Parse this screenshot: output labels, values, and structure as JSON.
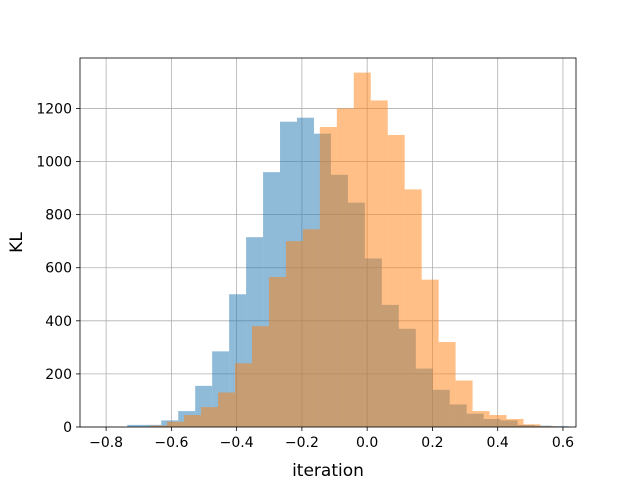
{
  "chart_data": {
    "type": "histogram",
    "title": "",
    "xlabel": "iteration",
    "ylabel": "KL",
    "xlim": [
      -0.88,
      0.64
    ],
    "ylim": [
      0,
      1390
    ],
    "grid": true,
    "legend": "none",
    "xticks": [
      -0.8,
      -0.6,
      -0.4,
      -0.2,
      0.0,
      0.2,
      0.4,
      0.6
    ],
    "xtick_labels": [
      "−0.8",
      "−0.6",
      "−0.4",
      "−0.2",
      "0.0",
      "0.2",
      "0.4",
      "0.6"
    ],
    "yticks": [
      0,
      200,
      400,
      600,
      800,
      1000,
      1200
    ],
    "ytick_labels": [
      "0",
      "200",
      "400",
      "600",
      "800",
      "1000",
      "1200"
    ],
    "series": [
      {
        "color": "#1f77b4",
        "opacity": 0.5,
        "bins": [
          {
            "x0": -0.735,
            "x1": -0.683,
            "count": 8
          },
          {
            "x0": -0.683,
            "x1": -0.631,
            "count": 8
          },
          {
            "x0": -0.631,
            "x1": -0.579,
            "count": 25
          },
          {
            "x0": -0.579,
            "x1": -0.527,
            "count": 60
          },
          {
            "x0": -0.527,
            "x1": -0.475,
            "count": 155
          },
          {
            "x0": -0.475,
            "x1": -0.423,
            "count": 285
          },
          {
            "x0": -0.423,
            "x1": -0.371,
            "count": 500
          },
          {
            "x0": -0.371,
            "x1": -0.319,
            "count": 715
          },
          {
            "x0": -0.319,
            "x1": -0.267,
            "count": 960
          },
          {
            "x0": -0.267,
            "x1": -0.215,
            "count": 1150
          },
          {
            "x0": -0.215,
            "x1": -0.163,
            "count": 1165
          },
          {
            "x0": -0.163,
            "x1": -0.111,
            "count": 1105
          },
          {
            "x0": -0.111,
            "x1": -0.059,
            "count": 950
          },
          {
            "x0": -0.059,
            "x1": -0.007,
            "count": 845
          },
          {
            "x0": -0.007,
            "x1": 0.045,
            "count": 635
          },
          {
            "x0": 0.045,
            "x1": 0.097,
            "count": 460
          },
          {
            "x0": 0.097,
            "x1": 0.149,
            "count": 370
          },
          {
            "x0": 0.149,
            "x1": 0.201,
            "count": 220
          },
          {
            "x0": 0.201,
            "x1": 0.253,
            "count": 140
          },
          {
            "x0": 0.253,
            "x1": 0.305,
            "count": 85
          },
          {
            "x0": 0.305,
            "x1": 0.357,
            "count": 50
          },
          {
            "x0": 0.357,
            "x1": 0.409,
            "count": 30
          },
          {
            "x0": 0.409,
            "x1": 0.461,
            "count": 25
          },
          {
            "x0": 0.461,
            "x1": 0.513,
            "count": 8
          },
          {
            "x0": 0.513,
            "x1": 0.565,
            "count": 5
          },
          {
            "x0": 0.565,
            "x1": 0.617,
            "count": 3
          }
        ]
      },
      {
        "color": "#ff7f0e",
        "opacity": 0.5,
        "bins": [
          {
            "x0": -0.665,
            "x1": -0.613,
            "count": 5
          },
          {
            "x0": -0.613,
            "x1": -0.561,
            "count": 20
          },
          {
            "x0": -0.561,
            "x1": -0.509,
            "count": 45
          },
          {
            "x0": -0.509,
            "x1": -0.457,
            "count": 75
          },
          {
            "x0": -0.457,
            "x1": -0.405,
            "count": 130
          },
          {
            "x0": -0.405,
            "x1": -0.353,
            "count": 240
          },
          {
            "x0": -0.353,
            "x1": -0.301,
            "count": 380
          },
          {
            "x0": -0.301,
            "x1": -0.249,
            "count": 565
          },
          {
            "x0": -0.249,
            "x1": -0.197,
            "count": 700
          },
          {
            "x0": -0.197,
            "x1": -0.145,
            "count": 745
          },
          {
            "x0": -0.145,
            "x1": -0.093,
            "count": 1130
          },
          {
            "x0": -0.093,
            "x1": -0.041,
            "count": 1200
          },
          {
            "x0": -0.041,
            "x1": 0.011,
            "count": 1335
          },
          {
            "x0": 0.011,
            "x1": 0.063,
            "count": 1230
          },
          {
            "x0": 0.063,
            "x1": 0.115,
            "count": 1100
          },
          {
            "x0": 0.115,
            "x1": 0.167,
            "count": 895
          },
          {
            "x0": 0.167,
            "x1": 0.219,
            "count": 555
          },
          {
            "x0": 0.219,
            "x1": 0.271,
            "count": 320
          },
          {
            "x0": 0.271,
            "x1": 0.323,
            "count": 175
          },
          {
            "x0": 0.323,
            "x1": 0.375,
            "count": 60
          },
          {
            "x0": 0.375,
            "x1": 0.427,
            "count": 45
          },
          {
            "x0": 0.427,
            "x1": 0.479,
            "count": 30
          },
          {
            "x0": 0.479,
            "x1": 0.531,
            "count": 10
          },
          {
            "x0": 0.531,
            "x1": 0.583,
            "count": 3
          }
        ]
      }
    ]
  }
}
